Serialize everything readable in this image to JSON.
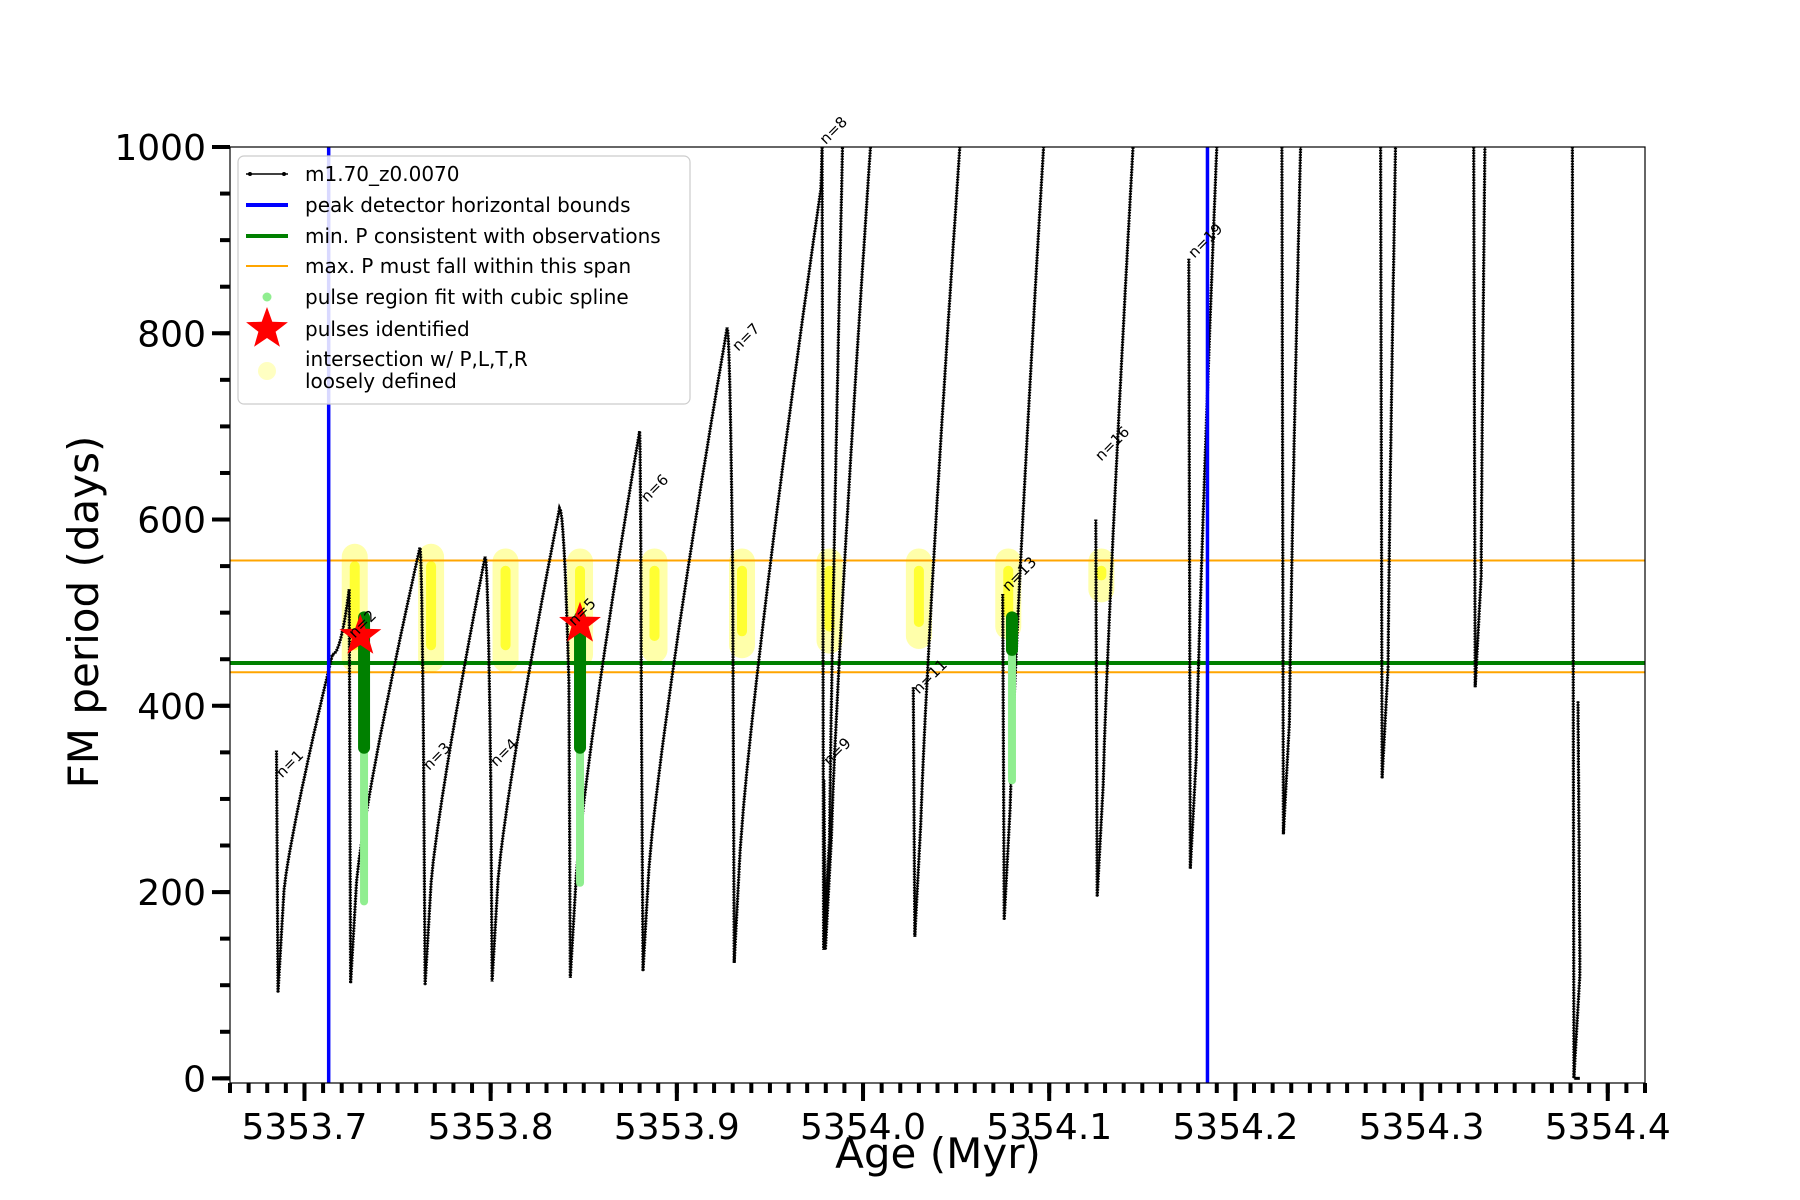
{
  "chart_data": {
    "type": "line",
    "xlabel": "Age (Myr)",
    "ylabel": "FM period (days)",
    "xlim": [
      5353.66,
      5354.42
    ],
    "ylim": [
      -5,
      1000
    ],
    "xticks": [
      5353.7,
      5353.8,
      5353.9,
      5354.0,
      5354.1,
      5354.2,
      5354.3,
      5354.4
    ],
    "xtick_labels": [
      "5353.7",
      "5353.8",
      "5353.9",
      "5354.0",
      "5354.1",
      "5354.2",
      "5354.3",
      "5354.4"
    ],
    "yticks": [
      0,
      200,
      400,
      600,
      800,
      1000
    ],
    "ytick_labels": [
      "0",
      "200",
      "400",
      "600",
      "800",
      "1000"
    ],
    "legend": {
      "location": "upper left",
      "entries": [
        {
          "label": "m1.70_z0.0070",
          "style": "line-dots",
          "color": "#000000"
        },
        {
          "label": "peak detector horizontal bounds",
          "style": "line",
          "color": "#0000ff"
        },
        {
          "label": "min. P consistent with observations",
          "style": "line",
          "color": "#008000"
        },
        {
          "label": "max. P must fall within this span",
          "style": "thin-line",
          "color": "#ffa500"
        },
        {
          "label": "pulse region fit with cubic spline",
          "style": "dot",
          "color": "#90ee90"
        },
        {
          "label": "pulses identified",
          "style": "star",
          "color": "#ff0000"
        },
        {
          "label": "intersection w/ P,L,T,R",
          "label2": "loosely defined",
          "style": "blob",
          "color": "#ffff99"
        }
      ]
    },
    "vertical_lines": {
      "color": "#0000ff",
      "x": [
        5353.713,
        5354.185
      ]
    },
    "hline_green": {
      "color": "#008000",
      "y": 446
    },
    "hlines_orange": {
      "color": "#ffa500",
      "y": [
        556,
        436
      ]
    },
    "pulses": [
      {
        "label": "n=1",
        "x": 5353.685,
        "ymin": 92,
        "ystart": 352,
        "ypeak": 455,
        "xpeak": 5353.715
      },
      {
        "label": "n=2",
        "x": 5353.724,
        "ymin": 102,
        "ystart": 525,
        "ypeak": 570,
        "xpeak": 5353.762
      },
      {
        "label": "n=3",
        "x": 5353.764,
        "ymin": 100,
        "ystart": 340,
        "ypeak": 560,
        "xpeak": 5353.797
      },
      {
        "label": "n=4",
        "x": 5353.8,
        "ymin": 104,
        "ystart": 325,
        "ypeak": 612,
        "xpeak": 5353.837
      },
      {
        "label": "n=5",
        "x": 5353.842,
        "ymin": 108,
        "ystart": 425,
        "ypeak": 695,
        "xpeak": 5353.88
      },
      {
        "label": "n=6",
        "x": 5353.881,
        "ymin": 115,
        "ystart": 375,
        "ypeak": 806,
        "xpeak": 5353.927
      },
      {
        "label": "n=7",
        "x": 5353.93,
        "ymin": 124,
        "ystart": 540,
        "ypeak": 950,
        "xpeak": 5353.977
      },
      {
        "label": "n=8",
        "x": 5353.978,
        "ymin": 138,
        "ystart": 1000,
        "ypeak": 1000,
        "xpeak": 5353.989
      },
      {
        "label": "n=9",
        "x": 5353.979,
        "ymin": 138,
        "ystart": 320,
        "ypeak": 1000,
        "xpeak": 5354.004
      },
      {
        "label": "n=11",
        "x": 5354.027,
        "ymin": 152,
        "ystart": 420,
        "ypeak": 1000,
        "xpeak": 5354.052
      },
      {
        "label": "n=13",
        "x": 5354.075,
        "ymin": 170,
        "ystart": 520,
        "ypeak": 1000,
        "xpeak": 5354.097
      },
      {
        "label": "n=16",
        "x": 5354.125,
        "ymin": 195,
        "ystart": 600,
        "ypeak": 1000,
        "xpeak": 5354.145
      },
      {
        "label": "n=19",
        "x": 5354.175,
        "ymin": 225,
        "ystart": 880,
        "ypeak": 1000,
        "xpeak": 5354.19
      },
      {
        "label": "",
        "x": 5354.225,
        "ymin": 262,
        "ystart": 1000,
        "ypeak": 1000,
        "xpeak": 5354.235
      },
      {
        "label": "",
        "x": 5354.278,
        "ymin": 322,
        "ystart": 1000,
        "ypeak": 1000,
        "xpeak": 5354.286
      },
      {
        "label": "",
        "x": 5354.328,
        "ymin": 420,
        "ystart": 1000,
        "ypeak": 1000,
        "xpeak": 5354.334
      },
      {
        "label": "",
        "x": 5354.381,
        "ymin": 0,
        "ystart": 1000,
        "ypeak": 405,
        "xpeak": 5354.384
      }
    ],
    "stars": [
      {
        "x": 5353.73,
        "y": 475
      },
      {
        "x": 5353.848,
        "y": 488
      }
    ],
    "yellow_regions": [
      {
        "x": 5353.727,
        "y0": 450,
        "y1": 560
      },
      {
        "x": 5353.768,
        "y0": 450,
        "y1": 560
      },
      {
        "x": 5353.808,
        "y0": 450,
        "y1": 555
      },
      {
        "x": 5353.848,
        "y0": 455,
        "y1": 555
      },
      {
        "x": 5353.888,
        "y0": 460,
        "y1": 555
      },
      {
        "x": 5353.935,
        "y0": 465,
        "y1": 555
      },
      {
        "x": 5353.982,
        "y0": 470,
        "y1": 555
      },
      {
        "x": 5354.03,
        "y0": 475,
        "y1": 555
      },
      {
        "x": 5354.078,
        "y0": 485,
        "y1": 555
      },
      {
        "x": 5354.128,
        "y0": 525,
        "y1": 555
      }
    ],
    "green_fits": [
      {
        "x": 5353.732,
        "y0": 190,
        "y1": 495,
        "dark0": 355,
        "dark1": 495
      },
      {
        "x": 5353.848,
        "y0": 210,
        "y1": 495,
        "dark0": 355,
        "dark1": 495
      },
      {
        "x": 5354.08,
        "y0": 320,
        "y1": 495,
        "dark0": 460,
        "dark1": 495
      }
    ],
    "n_labels_note": "labels placed beside pulse minima rises"
  }
}
